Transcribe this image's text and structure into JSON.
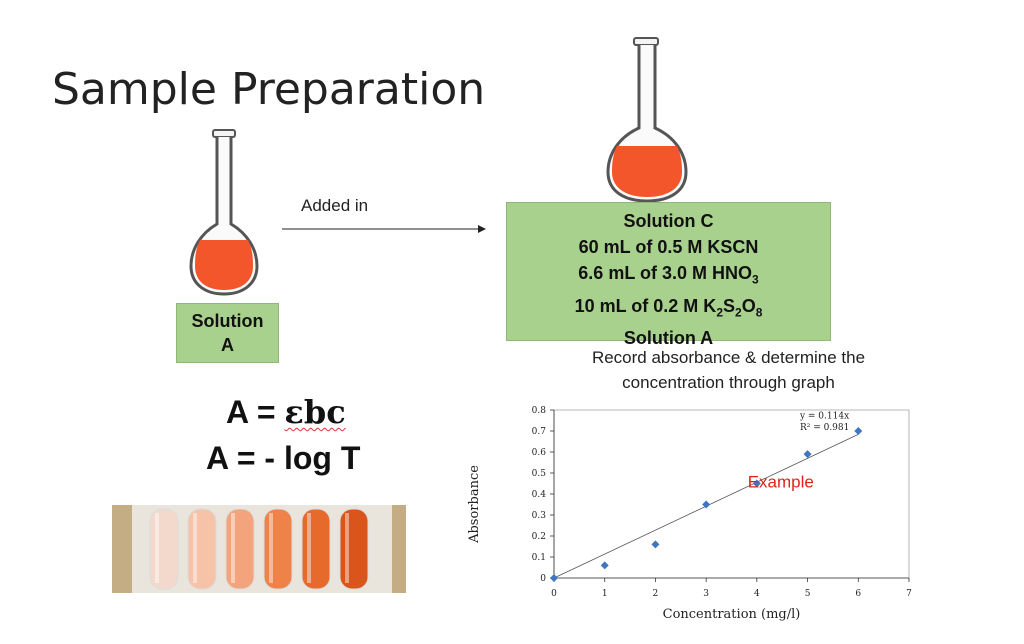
{
  "slide": {
    "title": "Sample Preparation"
  },
  "solution_a_box": {
    "line1": "Solution",
    "line2": "A"
  },
  "arrow_label": "Added in",
  "solution_c_box": {
    "title": "Solution C",
    "line1": "60 mL of 0.5 M KSCN",
    "line2": {
      "text": "6.6 mL of 3.0 M HNO",
      "sub": "3"
    },
    "line3": {
      "text": "10 mL of 0.2 M K",
      "sub1": "2",
      "mid1": "S",
      "sub2": "2",
      "mid2": "O",
      "sub3": "8"
    },
    "line4": "Solution A"
  },
  "instruction": {
    "line1": "Record absorbance & determine the",
    "line2": "concentration through graph"
  },
  "equations": {
    "eq1_prefix": "A = ",
    "eq1_symbol": "εbc",
    "eq2": "A = - log T"
  },
  "colors": {
    "flask_liquid": "#f2562a",
    "box_fill": "#a9d18e",
    "marker": "#3f76c4",
    "example_text": "#e0231c"
  },
  "chart_data": {
    "type": "scatter",
    "x": [
      0,
      1,
      2,
      3,
      4,
      5,
      6
    ],
    "y": [
      0,
      0.06,
      0.16,
      0.35,
      0.45,
      0.59,
      0.7
    ],
    "trendline": {
      "equation": "y = 0.114x",
      "r2": "R² = 0.981",
      "slope": 0.114
    },
    "xlabel": "Concentration (mg/l)",
    "ylabel": "Absorbance",
    "xlim": [
      0,
      7
    ],
    "ylim": [
      0,
      0.8
    ],
    "xticks": [
      "0",
      "1",
      "2",
      "3",
      "4",
      "5",
      "6",
      "7"
    ],
    "yticks": [
      "0",
      "0.1",
      "0.2",
      "0.3",
      "0.4",
      "0.5",
      "0.6",
      "0.7",
      "0.8"
    ],
    "annotation": "Example",
    "grid": false
  },
  "tubes": {
    "colors": [
      "#f3d9cc",
      "#f6c2a8",
      "#f4a47c",
      "#ef8248",
      "#e56a2c",
      "#d9551c"
    ]
  }
}
